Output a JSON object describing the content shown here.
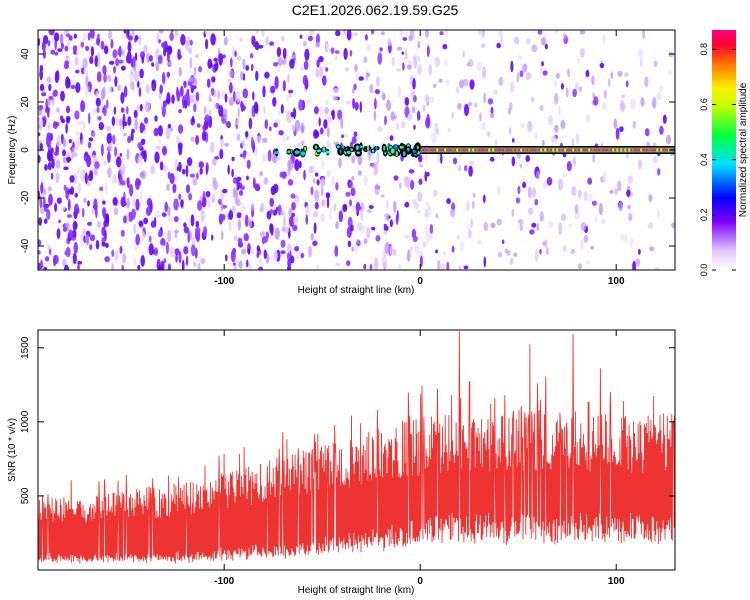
{
  "figure_title": "C2E1.2026.062.19.59.G25",
  "chart_data": [
    {
      "type": "heatmap",
      "xlabel": "Height of straight line (km)",
      "ylabel": "Frequency (Hz)",
      "xlim": [
        -195,
        130
      ],
      "ylim": [
        -50,
        50
      ],
      "x_ticks": [
        -100,
        0,
        100
      ],
      "y_ticks": [
        -40,
        -20,
        0,
        20,
        40
      ],
      "colorbar": {
        "label": "Normalized spectral amplitude",
        "range": [
          0,
          0.87
        ],
        "ticks": [
          0.0,
          0.2,
          0.4,
          0.6,
          0.8
        ],
        "colors": [
          "#ffffff",
          "#d8b4ff",
          "#7a00ff",
          "#0000ff",
          "#00ffff",
          "#00ff00",
          "#ffff00",
          "#ff8000",
          "#ff0040",
          "#ff0080"
        ]
      },
      "features": {
        "background_noise_density_by_height": [
          {
            "x": -195,
            "density": 0.85
          },
          {
            "x": -60,
            "density": 0.7
          },
          {
            "x": -5,
            "density": 0.35
          },
          {
            "x": 130,
            "density": 0.15
          }
        ],
        "signal_band": {
          "frequency_hz": 0,
          "start_height_km": -75,
          "onset_height_km": 0,
          "end_height_km": 130,
          "peak_amplitude": 0.85
        }
      }
    },
    {
      "type": "line",
      "xlabel": "Height of straight line (km)",
      "ylabel": "SNR (10 * v/v)",
      "xlim": [
        -195,
        130
      ],
      "ylim": [
        0,
        1620
      ],
      "x_ticks": [
        -100,
        0,
        100
      ],
      "y_ticks": [
        500,
        1000,
        1500
      ],
      "color": "#ee3333",
      "envelope": {
        "x": [
          -195,
          -160,
          -120,
          -90,
          -60,
          -30,
          -10,
          0,
          10,
          30,
          60,
          100,
          130
        ],
        "low": [
          80,
          70,
          80,
          120,
          160,
          220,
          260,
          300,
          320,
          330,
          330,
          320,
          320
        ],
        "high": [
          420,
          450,
          520,
          600,
          700,
          800,
          880,
          900,
          920,
          930,
          940,
          930,
          920
        ]
      },
      "peaks": [
        {
          "x": -150,
          "y": 640
        },
        {
          "x": -100,
          "y": 780
        },
        {
          "x": -68,
          "y": 880
        },
        {
          "x": -35,
          "y": 1040
        },
        {
          "x": 20,
          "y": 1610
        },
        {
          "x": 56,
          "y": 1520
        },
        {
          "x": 78,
          "y": 1590
        },
        {
          "x": 92,
          "y": 1360
        }
      ]
    }
  ]
}
